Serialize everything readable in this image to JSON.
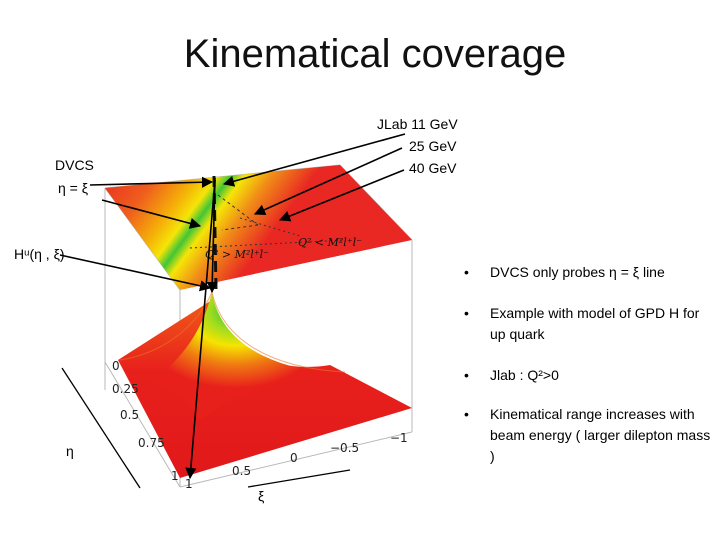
{
  "title": "Kinematical coverage",
  "labels": {
    "jlab": "JLab 11 GeV",
    "energy_25": "25 GeV",
    "energy_40": "40 GeV",
    "dvcs": "DVCS",
    "eta_eq_xi": "η = ξ",
    "hu": "Hᵘ(η , ξ)",
    "eta_axis": "η",
    "xi_axis": "ξ",
    "q2_greater": "Q² > M²l⁺l⁻",
    "q2_less": "Q² < M²l⁺l⁻"
  },
  "ticks": {
    "eta": [
      "0",
      "0.25",
      "0.5",
      "0.75",
      "1"
    ],
    "xi": [
      "1",
      "0.5",
      "0",
      "−0.5",
      "−1"
    ]
  },
  "bullets": [
    "DVCS only probes η = ξ line",
    "Example with  model of GPD H for up quark",
    "Jlab  : Q²>0",
    "Kinematical range increases with beam energy ( larger dilepton mass )"
  ],
  "colors": {
    "surface_red": "#e8201c",
    "surface_yellow": "#f5e400",
    "surface_green": "#22c22a",
    "arrow": "#000000"
  }
}
